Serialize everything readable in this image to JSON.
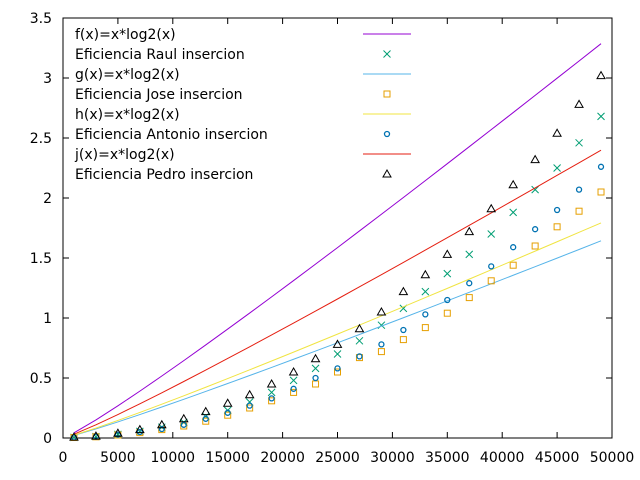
{
  "chart_data": {
    "type": "scatter",
    "title": "",
    "xlabel": "",
    "ylabel": "",
    "xlim": [
      0,
      50000
    ],
    "ylim": [
      0,
      3.5
    ],
    "xticks": [
      "0",
      "5000",
      "10000",
      "15000",
      "20000",
      "25000",
      "30000",
      "35000",
      "40000",
      "45000",
      "50000"
    ],
    "yticks": [
      "0",
      "0.5",
      "1",
      "1.5",
      "2",
      "2.5",
      "3",
      "3.5"
    ],
    "grid": false,
    "legend_position": "top-left",
    "x": [
      1000,
      3000,
      5000,
      7000,
      9000,
      11000,
      13000,
      15000,
      17000,
      19000,
      21000,
      23000,
      25000,
      27000,
      29000,
      31000,
      33000,
      35000,
      37000,
      39000,
      41000,
      43000,
      45000,
      47000,
      49000
    ],
    "series": [
      {
        "name": "f(x)=x*log2(x)",
        "kind": "line",
        "color": "#9400d3",
        "values": [
          0.0434,
          0.1507,
          0.268,
          0.3906,
          0.5165,
          0.645,
          0.7755,
          0.9077,
          1.0413,
          1.1762,
          1.3121,
          1.449,
          1.5867,
          1.7254,
          1.8646,
          2.0044,
          2.1449,
          2.286,
          2.4276,
          2.5696,
          2.7121,
          2.855,
          2.9983,
          3.1419,
          3.286
        ]
      },
      {
        "name": "Eficiencia Raul insercion",
        "kind": "points",
        "marker": "x",
        "color": "#009e73",
        "values": [
          0.005,
          0.012,
          0.03,
          0.055,
          0.09,
          0.13,
          0.18,
          0.23,
          0.3,
          0.38,
          0.48,
          0.58,
          0.7,
          0.81,
          0.94,
          1.08,
          1.22,
          1.37,
          1.53,
          1.7,
          1.88,
          2.07,
          2.25,
          2.46,
          2.68
        ]
      },
      {
        "name": "g(x)=x*log2(x)",
        "kind": "line",
        "color": "#56b4e9",
        "values": [
          0.0217,
          0.0754,
          0.134,
          0.1953,
          0.2583,
          0.3225,
          0.3878,
          0.4539,
          0.5207,
          0.5881,
          0.6561,
          0.7245,
          0.7934,
          0.8627,
          0.9323,
          1.0022,
          1.0725,
          1.143,
          1.2138,
          1.2848,
          1.3561,
          1.4275,
          1.4992,
          1.571,
          1.643
        ]
      },
      {
        "name": "Eficiencia Jose insercion",
        "kind": "points",
        "marker": "square",
        "color": "#e69f00",
        "values": [
          0.004,
          0.01,
          0.025,
          0.045,
          0.07,
          0.1,
          0.14,
          0.19,
          0.25,
          0.31,
          0.38,
          0.45,
          0.55,
          0.67,
          0.72,
          0.82,
          0.92,
          1.04,
          1.17,
          1.31,
          1.44,
          1.6,
          1.76,
          1.89,
          2.05
        ]
      },
      {
        "name": "h(x)=x*log2(x)",
        "kind": "line",
        "color": "#f0e442",
        "values": [
          0.0237,
          0.0822,
          0.1462,
          0.213,
          0.2817,
          0.3518,
          0.423,
          0.4951,
          0.568,
          0.6416,
          0.7157,
          0.7904,
          0.8655,
          0.9411,
          1.0171,
          1.0933,
          1.17,
          1.2469,
          1.3241,
          1.4016,
          1.4793,
          1.5573,
          1.6355,
          1.7138,
          1.7924
        ]
      },
      {
        "name": "Eficiencia Antonio insercion",
        "kind": "points",
        "marker": "circle",
        "color": "#0072b2",
        "values": [
          0.004,
          0.011,
          0.028,
          0.05,
          0.075,
          0.11,
          0.16,
          0.21,
          0.27,
          0.33,
          0.41,
          0.5,
          0.58,
          0.68,
          0.78,
          0.9,
          1.03,
          1.15,
          1.29,
          1.43,
          1.59,
          1.74,
          1.9,
          2.07,
          2.26
        ]
      },
      {
        "name": "j(x)=x*log2(x)",
        "kind": "line",
        "color": "#e51e10",
        "values": [
          0.0317,
          0.11,
          0.1957,
          0.2851,
          0.377,
          0.4708,
          0.5661,
          0.6626,
          0.7601,
          0.8586,
          0.9578,
          1.0578,
          1.1583,
          1.2595,
          1.3611,
          1.4632,
          1.5658,
          1.6688,
          1.7721,
          1.8758,
          1.9798,
          2.0841,
          2.1887,
          2.2936,
          2.3988
        ]
      },
      {
        "name": "Eficiencia Pedro insercion",
        "kind": "points",
        "marker": "triangle",
        "color": "#000000",
        "values": [
          0.007,
          0.016,
          0.04,
          0.07,
          0.11,
          0.16,
          0.22,
          0.29,
          0.36,
          0.45,
          0.55,
          0.66,
          0.78,
          0.91,
          1.05,
          1.22,
          1.36,
          1.53,
          1.72,
          1.91,
          2.11,
          2.32,
          2.54,
          2.78,
          3.02
        ]
      }
    ]
  }
}
